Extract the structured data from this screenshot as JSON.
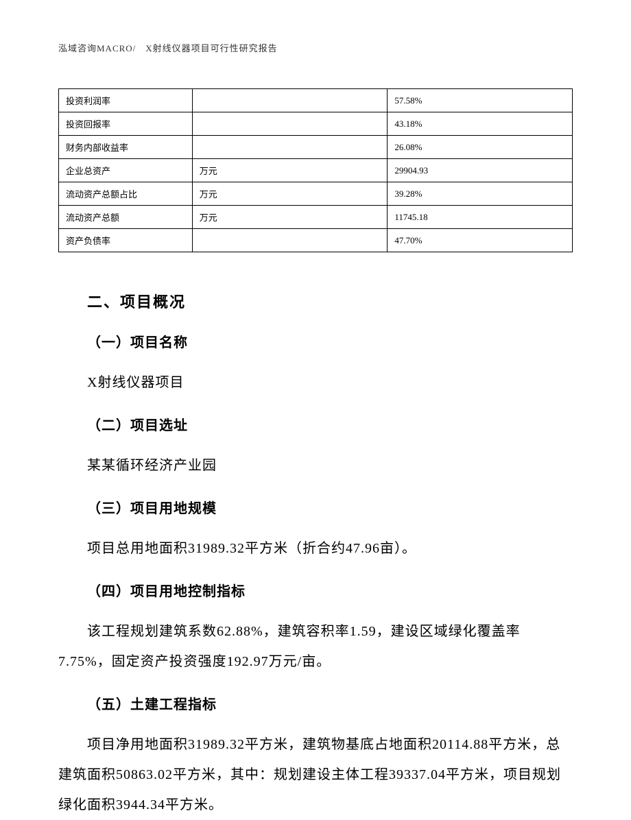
{
  "header": {
    "text": "泓域咨询MACRO/　X射线仪器项目可行性研究报告"
  },
  "table": {
    "rows": [
      {
        "label": "投资利润率",
        "unit": "",
        "value": "57.58%"
      },
      {
        "label": "投资回报率",
        "unit": "",
        "value": "43.18%"
      },
      {
        "label": "财务内部收益率",
        "unit": "",
        "value": "26.08%"
      },
      {
        "label": "企业总资产",
        "unit": "万元",
        "value": "29904.93"
      },
      {
        "label": "流动资产总额占比",
        "unit": "万元",
        "value": "39.28%"
      },
      {
        "label": "流动资产总额",
        "unit": "万元",
        "value": "11745.18"
      },
      {
        "label": "资产负债率",
        "unit": "",
        "value": "47.70%"
      }
    ],
    "border_color": "#000000",
    "font_size": 13
  },
  "content": {
    "section_title": "二、项目概况",
    "items": [
      {
        "heading": "（一）项目名称",
        "body": "X射线仪器项目"
      },
      {
        "heading": "（二）项目选址",
        "body": "某某循环经济产业园"
      },
      {
        "heading": "（三）项目用地规模",
        "body": "项目总用地面积31989.32平方米（折合约47.96亩）。"
      },
      {
        "heading": "（四）项目用地控制指标",
        "body": "该工程规划建筑系数62.88%，建筑容积率1.59，建设区域绿化覆盖率7.75%，固定资产投资强度192.97万元/亩。"
      },
      {
        "heading": "（五）土建工程指标",
        "body": "项目净用地面积31989.32平方米，建筑物基底占地面积20114.88平方米，总建筑面积50863.02平方米，其中：规划建设主体工程39337.04平方米，项目规划绿化面积3944.34平方米。"
      }
    ]
  },
  "styling": {
    "background_color": "#ffffff",
    "text_color": "#000000",
    "heading_font_size": 22,
    "sub_heading_font_size": 20,
    "body_font_size": 20,
    "line_height": 2.2,
    "font_family": "SimSun"
  }
}
